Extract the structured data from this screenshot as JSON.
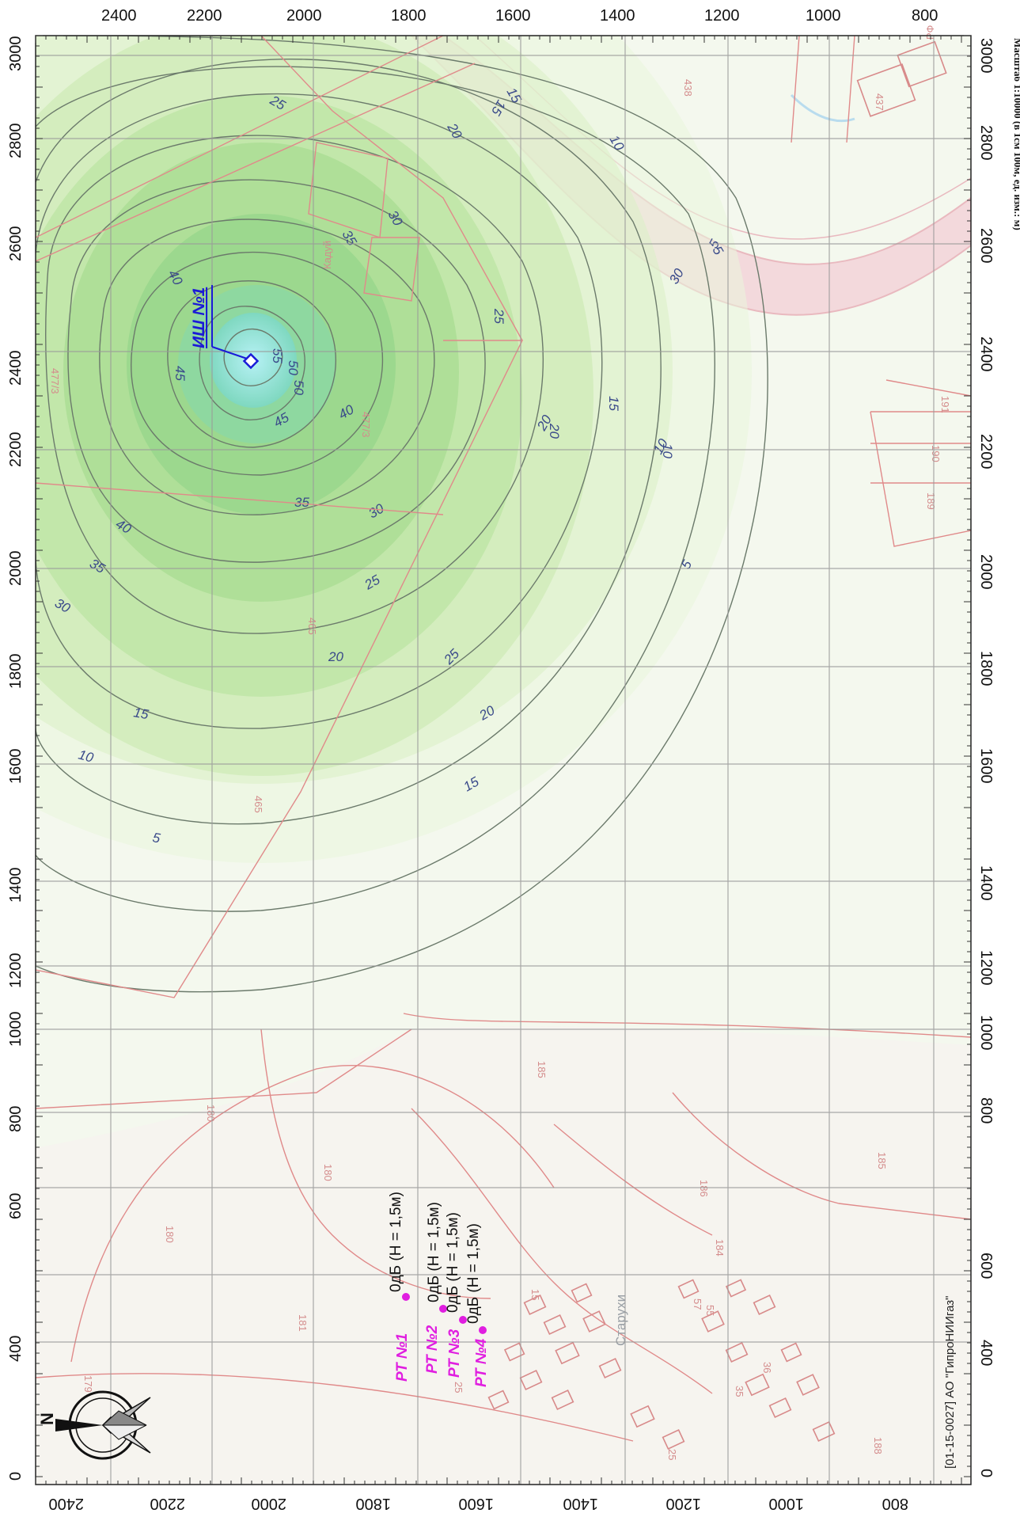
{
  "axes": {
    "top_ticks": [
      "2400",
      "2200",
      "2000",
      "1800",
      "1600",
      "1400",
      "1200",
      "1000",
      "800"
    ],
    "bottom_ticks": [
      "2400",
      "2200",
      "2000",
      "1800",
      "1600",
      "1400",
      "1200",
      "1000",
      "800"
    ],
    "left_ticks": [
      "3000",
      "2800",
      "2600",
      "2400",
      "2200",
      "2000",
      "1800",
      "1600",
      "1400",
      "1200",
      "1000",
      "800",
      "600",
      "400",
      "0"
    ],
    "right_ticks": [
      "3000",
      "2800",
      "2600",
      "2400",
      "2200",
      "2000",
      "1800",
      "1600",
      "1400",
      "1200",
      "1000",
      "800",
      "600",
      "400",
      "0"
    ]
  },
  "source": {
    "label": "ИШ №1",
    "color": "#1a1ad8"
  },
  "contour_levels": [
    "55",
    "50",
    "45",
    "40",
    "35",
    "30",
    "25",
    "20",
    "15",
    "10",
    "5"
  ],
  "contour_labels": [
    "55",
    "50",
    "45",
    "40",
    "35",
    "30",
    "25",
    "20",
    "15",
    "10",
    "5",
    "45",
    "40",
    "35",
    "30",
    "25",
    "20",
    "15",
    "10",
    "5",
    "40",
    "35",
    "30",
    "25",
    "20",
    "15",
    "10",
    "5",
    "30",
    "25",
    "20",
    "15",
    "10",
    "5",
    "50",
    "20",
    "15"
  ],
  "receptors": [
    {
      "label": "РТ №1",
      "value": "0дБ (H = 1,5м)"
    },
    {
      "label": "РТ №2",
      "value": "0дБ (H = 1,5м)"
    },
    {
      "label": "РТ №3",
      "value": "0дБ (H = 1,5м)"
    },
    {
      "label": "РТ №4",
      "value": "0дБ (H = 1,5м)"
    }
  ],
  "parcels": [
    "438",
    "437",
    "477/3",
    "477/3",
    "465",
    "465",
    "190",
    "191",
    "189",
    "185",
    "185",
    "186",
    "184",
    "180",
    "180",
    "180",
    "181",
    "179",
    "188",
    "57",
    "55",
    "25",
    "35",
    "36",
    "15",
    "25"
  ],
  "place_labels": {
    "village": "Старухи",
    "river_site": "Кадуй",
    "office": "РФ"
  },
  "credit": "[01-15-0027] АО \"ГипроНИИгаз\"",
  "scale_text": "Масштаб 1:10000 (в 1см 100м, ед. изм.: м)",
  "colors": {
    "contour_line": "#6b7a6b",
    "contour_label": "#3a4a8a",
    "parcel_line": "#e08a8a",
    "receptor": "#e01ee0",
    "grid": "#9a9a9a",
    "zone_outer": "#e6f5d6",
    "zone_mid": "#b9e3a0",
    "zone_inner": "#7fd48a",
    "zone_core": "#8fe0e8"
  }
}
